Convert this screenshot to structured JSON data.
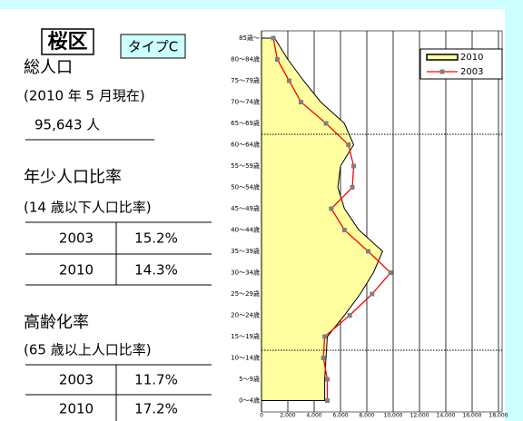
{
  "header": {
    "ward": "桜区",
    "type": "タイプC"
  },
  "population": {
    "label": "総人口",
    "note": "(2010 年 5 月現在)",
    "value": "95,643 人"
  },
  "youth": {
    "label": "年少人口比率",
    "note": "(14 歳以下人口比率)",
    "rows": [
      [
        "2003",
        "15.2%"
      ],
      [
        "2010",
        "14.3%"
      ]
    ]
  },
  "aging": {
    "label": "高齢化率",
    "note": "(65 歳以上人口比率)",
    "rows": [
      [
        "2003",
        "11.7%"
      ],
      [
        "2010",
        "17.2%"
      ]
    ]
  },
  "chart_data": {
    "type": "line",
    "orientation": "horizontal",
    "categories": [
      "85歳～",
      "80～84歳",
      "75～79歳",
      "70～74歳",
      "65～69歳",
      "60～64歳",
      "55～59歳",
      "50～54歳",
      "45～49歳",
      "40～44歳",
      "35～39歳",
      "30～34歳",
      "25～29歳",
      "20～24歳",
      "15～19歳",
      "10～14歳",
      "5～9歳",
      "0～4歳"
    ],
    "series": [
      {
        "name": "2010",
        "type": "area",
        "color": "#ffffa0",
        "values": [
          1000,
          2000,
          3200,
          4500,
          6300,
          7000,
          6000,
          5800,
          6300,
          7400,
          9200,
          8500,
          7500,
          6300,
          5000,
          4900,
          4800,
          4800
        ]
      },
      {
        "name": "2003",
        "type": "line",
        "color": "#ff0000",
        "marker_color": "#808080",
        "values": [
          900,
          1200,
          2100,
          3000,
          4900,
          6600,
          7000,
          6900,
          5300,
          6300,
          8100,
          9800,
          8400,
          6700,
          4800,
          4700,
          5000,
          5000
        ]
      }
    ],
    "xlim": [
      0,
      18000
    ],
    "xticks": [
      0,
      {
        "value": 2000,
        "label": "2,000"
      },
      {
        "value": 4000,
        "label": "4,000"
      },
      {
        "value": 6000,
        "label": "6,000"
      },
      {
        "value": 8000,
        "label": "8,000"
      },
      {
        "value": 10000,
        "label": "10,000"
      },
      {
        "value": 12000,
        "label": "12,000"
      },
      {
        "value": 14000,
        "label": "14,000"
      },
      {
        "value": 16000,
        "label": "16,000"
      },
      {
        "value": 18000,
        "label": "18,000"
      }
    ],
    "grid": true,
    "legend": "upper right"
  }
}
